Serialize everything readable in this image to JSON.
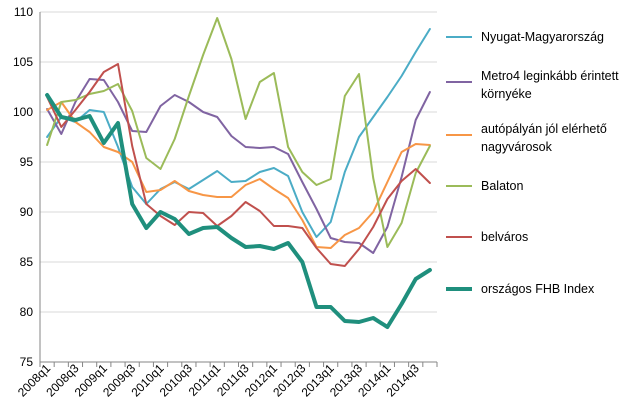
{
  "chart_data": {
    "type": "line",
    "title": "",
    "xlabel": "",
    "ylabel": "",
    "ylim": [
      75,
      110
    ],
    "yticks": [
      75,
      80,
      85,
      90,
      95,
      100,
      105,
      110
    ],
    "grid": "horizontal",
    "legend_position": "right",
    "x": [
      "2008q1",
      "2008q2",
      "2008q3",
      "2008q4",
      "2009q1",
      "2009q2",
      "2009q3",
      "2009q4",
      "2010q1",
      "2010q2",
      "2010q3",
      "2010q4",
      "2011q1",
      "2011q2",
      "2011q3",
      "2011q4",
      "2012q1",
      "2012q2",
      "2012q3",
      "2012q4",
      "2013q1",
      "2013q2",
      "2013q3",
      "2013q4",
      "2014q1",
      "2014q2",
      "2014q3",
      "2014q4"
    ],
    "xtick_labels": [
      "2008q1",
      "2008q3",
      "2009q1",
      "2009q3",
      "2010q1",
      "2010q3",
      "2011q1",
      "2011q3",
      "2012q1",
      "2012q3",
      "2013q1",
      "2013q3",
      "2014q1",
      "2014q3"
    ],
    "series": [
      {
        "name": "Nyugat-Magyarország",
        "color": "#4bacc6",
        "width": 2,
        "legend_lines": [
          "Nyugat-Magyarország"
        ],
        "values": [
          97.5,
          99.5,
          99.0,
          100.2,
          100.0,
          96.5,
          92.5,
          90.8,
          92.3,
          93.0,
          92.3,
          93.2,
          94.1,
          93.0,
          93.1,
          94.0,
          94.4,
          93.6,
          90.0,
          87.5,
          89.0,
          94.0,
          97.5,
          99.5,
          101.5,
          103.6,
          106.0,
          108.3
        ]
      },
      {
        "name": "Metro4 leginkább érintett környéke",
        "color": "#8064a2",
        "width": 2,
        "legend_lines": [
          "Metro4 leginkább érintett",
          "környéke"
        ],
        "values": [
          100.3,
          97.8,
          101.0,
          103.3,
          103.2,
          101.0,
          98.1,
          98.0,
          100.6,
          101.7,
          101.0,
          100.0,
          99.5,
          97.6,
          96.5,
          96.4,
          96.5,
          95.8,
          93.0,
          90.3,
          87.4,
          87.0,
          86.9,
          85.9,
          88.5,
          93.5,
          99.2,
          102.0
        ]
      },
      {
        "name": "autópályán jól elérhető nagyvárosok",
        "color": "#f79646",
        "width": 2,
        "legend_lines": [
          "autópályán jól elérhető",
          "nagyvárosok"
        ],
        "values": [
          100.2,
          101.0,
          99.0,
          98.0,
          96.5,
          96.0,
          95.0,
          92.0,
          92.2,
          93.1,
          92.1,
          91.7,
          91.5,
          91.5,
          92.7,
          93.3,
          92.3,
          91.4,
          89.2,
          86.5,
          86.4,
          87.7,
          88.4,
          90.0,
          93.0,
          96.0,
          96.8,
          96.7
        ]
      },
      {
        "name": "Balaton",
        "color": "#9bbb59",
        "width": 2,
        "legend_lines": [
          "Balaton"
        ],
        "values": [
          96.7,
          101.0,
          101.2,
          101.8,
          102.1,
          102.8,
          100.1,
          95.4,
          94.3,
          97.3,
          101.6,
          105.7,
          109.4,
          105.3,
          99.3,
          103.0,
          103.9,
          96.5,
          94.0,
          92.7,
          93.3,
          101.6,
          103.8,
          93.4,
          86.5,
          88.9,
          93.9,
          96.6
        ]
      },
      {
        "name": "belváros",
        "color": "#c0504d",
        "width": 2,
        "legend_lines": [
          "belváros"
        ],
        "values": [
          101.5,
          98.5,
          100.2,
          102.0,
          104.0,
          104.8,
          96.6,
          90.8,
          89.6,
          88.7,
          90.0,
          89.9,
          88.6,
          89.6,
          91.0,
          90.1,
          88.6,
          88.6,
          88.4,
          86.4,
          84.8,
          84.6,
          86.3,
          88.5,
          91.3,
          93.1,
          94.3,
          92.9
        ]
      },
      {
        "name": "országos FHB Index",
        "color": "#1f8f7d",
        "width": 4,
        "legend_lines": [
          "országos FHB Index"
        ],
        "values": [
          101.7,
          99.5,
          99.2,
          99.6,
          96.9,
          98.9,
          90.8,
          88.4,
          90.0,
          89.3,
          87.8,
          88.4,
          88.5,
          87.4,
          86.5,
          86.6,
          86.3,
          86.9,
          85.0,
          80.5,
          80.5,
          79.1,
          79.0,
          79.4,
          78.5,
          80.8,
          83.3,
          84.2
        ]
      }
    ]
  }
}
